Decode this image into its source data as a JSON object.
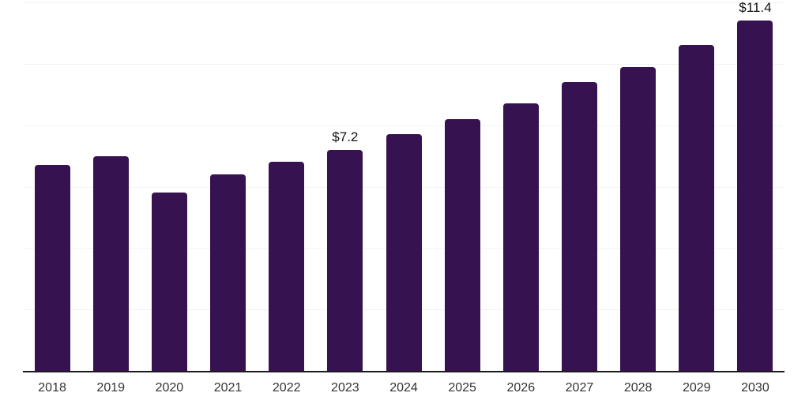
{
  "chart_data": {
    "type": "bar",
    "title": "",
    "xlabel": "",
    "ylabel": "",
    "categories": [
      "2018",
      "2019",
      "2020",
      "2021",
      "2022",
      "2023",
      "2024",
      "2025",
      "2026",
      "2027",
      "2028",
      "2029",
      "2030"
    ],
    "values": [
      6.7,
      7.0,
      5.8,
      6.4,
      6.8,
      7.2,
      7.7,
      8.2,
      8.7,
      9.4,
      9.9,
      10.6,
      11.4
    ],
    "data_labels": {
      "2023": "$7.2",
      "2030": "$11.4"
    },
    "ylim": [
      0,
      12
    ],
    "grid_step": 2,
    "grid": "horizontal-faint",
    "legend_position": "none",
    "colors": {
      "bar": "#371250",
      "axis_line": "#1a1a1a",
      "gridline": "#f2f2f2",
      "tick_label": "#333333",
      "data_label": "#111111",
      "background": "#ffffff"
    }
  }
}
